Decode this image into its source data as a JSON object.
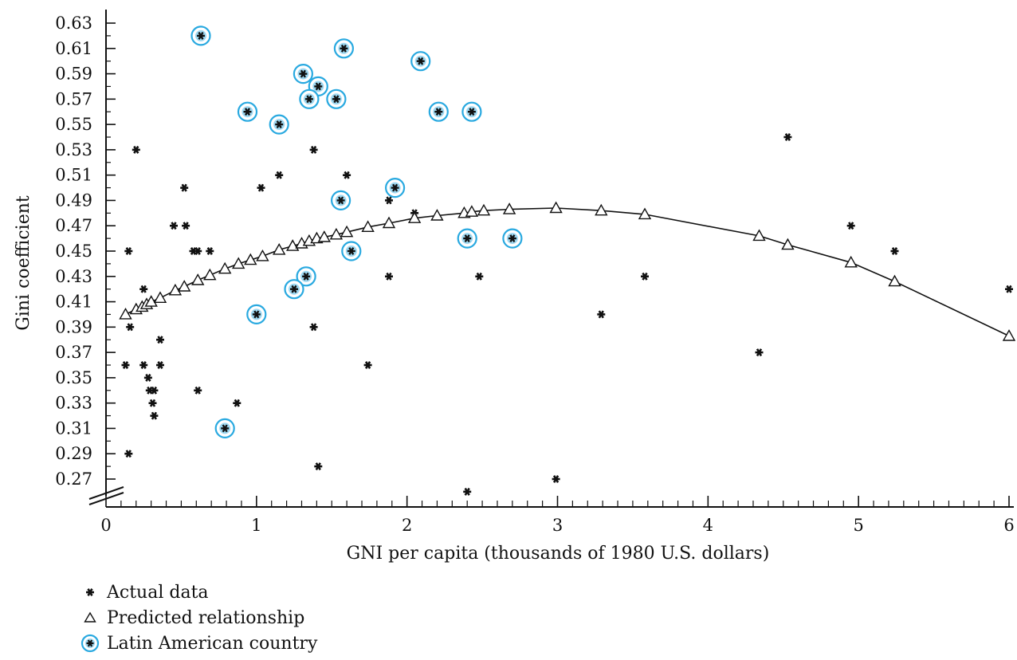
{
  "chart_data": {
    "type": "scatter",
    "xlabel": "GNI per capita (thousands of 1980 U.S. dollars)",
    "ylabel": "Gini coefficient",
    "xlim": [
      0,
      6
    ],
    "ylim": [
      0.255,
      0.64
    ],
    "x_ticks": [
      "0",
      "1",
      "2",
      "3",
      "4",
      "5",
      "6"
    ],
    "y_ticks": [
      "0.27",
      "0.29",
      "0.31",
      "0.33",
      "0.35",
      "0.37",
      "0.39",
      "0.41",
      "0.43",
      "0.45",
      "0.47",
      "0.49",
      "0.51",
      "0.53",
      "0.55",
      "0.57",
      "0.59",
      "0.61",
      "0.63"
    ],
    "y_tick_values": [
      0.27,
      0.29,
      0.31,
      0.33,
      0.35,
      0.37,
      0.39,
      0.41,
      0.43,
      0.45,
      0.47,
      0.49,
      0.51,
      0.53,
      0.55,
      0.57,
      0.59,
      0.61,
      0.63
    ],
    "axis_break": true,
    "grid": false,
    "legend_position": "bottom-left",
    "series": [
      {
        "name": "Actual data",
        "marker": "asterisk",
        "color": "#111111",
        "points": [
          [
            0.15,
            0.45
          ],
          [
            0.2,
            0.53
          ],
          [
            0.13,
            0.36
          ],
          [
            0.16,
            0.39
          ],
          [
            0.15,
            0.29
          ],
          [
            0.25,
            0.42
          ],
          [
            0.25,
            0.36
          ],
          [
            0.28,
            0.35
          ],
          [
            0.29,
            0.34
          ],
          [
            0.32,
            0.34
          ],
          [
            0.31,
            0.33
          ],
          [
            0.32,
            0.32
          ],
          [
            0.36,
            0.38
          ],
          [
            0.36,
            0.36
          ],
          [
            0.45,
            0.47
          ],
          [
            0.52,
            0.5
          ],
          [
            0.53,
            0.47
          ],
          [
            0.58,
            0.45
          ],
          [
            0.61,
            0.45
          ],
          [
            0.69,
            0.45
          ],
          [
            0.61,
            0.34
          ],
          [
            0.87,
            0.33
          ],
          [
            1.03,
            0.5
          ],
          [
            1.15,
            0.51
          ],
          [
            1.38,
            0.53
          ],
          [
            1.38,
            0.39
          ],
          [
            1.41,
            0.28
          ],
          [
            1.6,
            0.51
          ],
          [
            1.74,
            0.36
          ],
          [
            1.88,
            0.49
          ],
          [
            1.88,
            0.43
          ],
          [
            2.05,
            0.48
          ],
          [
            2.4,
            0.26
          ],
          [
            2.48,
            0.43
          ],
          [
            2.99,
            0.27
          ],
          [
            3.29,
            0.4
          ],
          [
            3.58,
            0.43
          ],
          [
            4.34,
            0.37
          ],
          [
            4.53,
            0.54
          ],
          [
            4.95,
            0.47
          ],
          [
            5.24,
            0.45
          ],
          [
            6.0,
            0.42
          ]
        ]
      },
      {
        "name": "Predicted relationship",
        "marker": "triangle",
        "color": "#111111",
        "points": [
          [
            0.13,
            0.4
          ],
          [
            0.2,
            0.404
          ],
          [
            0.24,
            0.406
          ],
          [
            0.27,
            0.408
          ],
          [
            0.3,
            0.41
          ],
          [
            0.36,
            0.413
          ],
          [
            0.46,
            0.419
          ],
          [
            0.52,
            0.422
          ],
          [
            0.61,
            0.427
          ],
          [
            0.69,
            0.431
          ],
          [
            0.79,
            0.436
          ],
          [
            0.88,
            0.44
          ],
          [
            0.96,
            0.443
          ],
          [
            1.04,
            0.446
          ],
          [
            1.15,
            0.451
          ],
          [
            1.24,
            0.454
          ],
          [
            1.3,
            0.456
          ],
          [
            1.35,
            0.458
          ],
          [
            1.4,
            0.46
          ],
          [
            1.45,
            0.461
          ],
          [
            1.53,
            0.463
          ],
          [
            1.6,
            0.465
          ],
          [
            1.74,
            0.469
          ],
          [
            1.88,
            0.472
          ],
          [
            2.05,
            0.476
          ],
          [
            2.2,
            0.478
          ],
          [
            2.38,
            0.48
          ],
          [
            2.43,
            0.481
          ],
          [
            2.51,
            0.482
          ],
          [
            2.68,
            0.483
          ],
          [
            2.99,
            0.484
          ],
          [
            3.29,
            0.482
          ],
          [
            3.58,
            0.479
          ],
          [
            4.34,
            0.462
          ],
          [
            4.53,
            0.455
          ],
          [
            4.95,
            0.441
          ],
          [
            5.24,
            0.426
          ],
          [
            6.0,
            0.383
          ]
        ]
      },
      {
        "name": "Latin American country",
        "marker": "circled-asterisk",
        "color": "#29a9e0",
        "points": [
          [
            0.63,
            0.62
          ],
          [
            0.94,
            0.56
          ],
          [
            1.15,
            0.55
          ],
          [
            1.31,
            0.59
          ],
          [
            1.41,
            0.58
          ],
          [
            1.35,
            0.57
          ],
          [
            1.53,
            0.57
          ],
          [
            1.58,
            0.61
          ],
          [
            2.09,
            0.6
          ],
          [
            2.21,
            0.56
          ],
          [
            2.43,
            0.56
          ],
          [
            1.56,
            0.49
          ],
          [
            1.63,
            0.45
          ],
          [
            1.92,
            0.5
          ],
          [
            2.4,
            0.46
          ],
          [
            2.7,
            0.46
          ],
          [
            1.33,
            0.43
          ],
          [
            1.25,
            0.42
          ],
          [
            1.0,
            0.4
          ],
          [
            0.79,
            0.31
          ]
        ]
      }
    ]
  },
  "legend": {
    "items": [
      {
        "marker": "asterisk",
        "label": "Actual data"
      },
      {
        "marker": "triangle",
        "label": "Predicted relationship"
      },
      {
        "marker": "circled-asterisk",
        "label": "Latin American country"
      }
    ]
  }
}
